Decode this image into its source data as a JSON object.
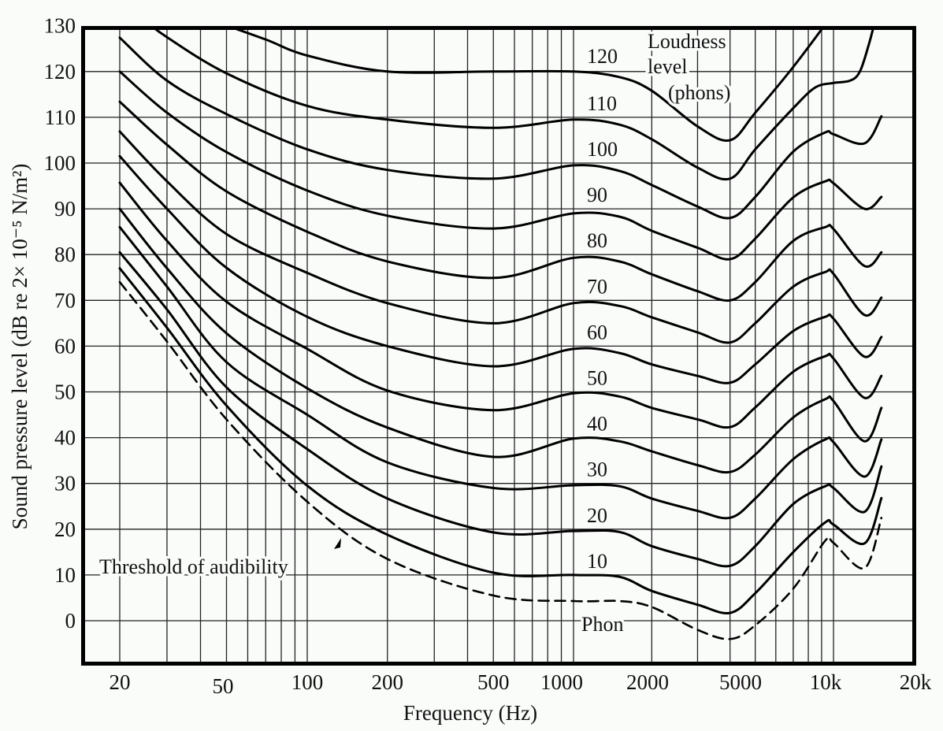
{
  "chart_data": {
    "type": "line",
    "title": "",
    "xlabel": "Frequency (Hz)",
    "ylabel": "Sound pressure level (dB re 2× 10⁻⁵ N/m²)",
    "x_scale": "log",
    "xlim": [
      20,
      20000
    ],
    "ylim": [
      -10,
      130
    ],
    "grid": true,
    "x_ticks": [
      {
        "value": 20,
        "label": "20"
      },
      {
        "value": 50,
        "label": "50"
      },
      {
        "value": 100,
        "label": "100"
      },
      {
        "value": 200,
        "label": "200"
      },
      {
        "value": 500,
        "label": "500"
      },
      {
        "value": 1000,
        "label": "1000"
      },
      {
        "value": 2000,
        "label": "2000"
      },
      {
        "value": 5000,
        "label": "5000"
      },
      {
        "value": 10000,
        "label": "10k"
      },
      {
        "value": 20000,
        "label": "20k"
      }
    ],
    "y_ticks": [
      {
        "value": 130,
        "label": "130"
      },
      {
        "value": 120,
        "label": "120"
      },
      {
        "value": 110,
        "label": "110"
      },
      {
        "value": 100,
        "label": "100"
      },
      {
        "value": 90,
        "label": "90"
      },
      {
        "value": 80,
        "label": "80"
      },
      {
        "value": 70,
        "label": "70"
      },
      {
        "value": 60,
        "label": "60"
      },
      {
        "value": 50,
        "label": "50"
      },
      {
        "value": 40,
        "label": "40"
      },
      {
        "value": 30,
        "label": "30"
      },
      {
        "value": 20,
        "label": "20"
      },
      {
        "value": 10,
        "label": "10"
      },
      {
        "value": 0,
        "label": "0"
      }
    ],
    "series": [
      {
        "name": "Threshold of audibility",
        "style": "dashed",
        "points": [
          [
            20,
            74
          ],
          [
            30,
            61
          ],
          [
            50,
            44
          ],
          [
            100,
            26
          ],
          [
            200,
            13.5
          ],
          [
            500,
            5.5
          ],
          [
            1000,
            4.3
          ],
          [
            1500,
            4.3
          ],
          [
            2000,
            3
          ],
          [
            3000,
            -2
          ],
          [
            4000,
            -4
          ],
          [
            5000,
            -1
          ],
          [
            7000,
            7
          ],
          [
            9300,
            17.5
          ],
          [
            10000,
            17
          ],
          [
            13000,
            11.5
          ],
          [
            15000,
            22.5
          ]
        ]
      },
      {
        "name": "10",
        "points": [
          [
            20,
            77
          ],
          [
            30,
            64
          ],
          [
            50,
            47
          ],
          [
            100,
            29.5
          ],
          [
            200,
            18.8
          ],
          [
            500,
            10.5
          ],
          [
            1000,
            10
          ],
          [
            1500,
            9.6
          ],
          [
            2000,
            6.5
          ],
          [
            3000,
            3.5
          ],
          [
            4000,
            1.7
          ],
          [
            5000,
            6
          ],
          [
            7000,
            15
          ],
          [
            9300,
            21.5
          ],
          [
            10000,
            21
          ],
          [
            13000,
            16.9
          ],
          [
            15000,
            26.8
          ]
        ]
      },
      {
        "name": "20",
        "points": [
          [
            20,
            80.5
          ],
          [
            30,
            68
          ],
          [
            50,
            51
          ],
          [
            100,
            37.5
          ],
          [
            200,
            26.7
          ],
          [
            500,
            19.3
          ],
          [
            1000,
            19.6
          ],
          [
            1500,
            19.4
          ],
          [
            2000,
            16.3
          ],
          [
            3000,
            13.5
          ],
          [
            4000,
            12
          ],
          [
            5000,
            16.3
          ],
          [
            7000,
            25.5
          ],
          [
            9300,
            29.4
          ],
          [
            10000,
            29
          ],
          [
            13000,
            23.8
          ],
          [
            15000,
            33.7
          ]
        ]
      },
      {
        "name": "30",
        "points": [
          [
            20,
            86
          ],
          [
            30,
            73
          ],
          [
            50,
            56.5
          ],
          [
            100,
            45
          ],
          [
            200,
            34.6
          ],
          [
            500,
            29
          ],
          [
            1000,
            29.6
          ],
          [
            1500,
            29.4
          ],
          [
            2000,
            26.7
          ],
          [
            3000,
            24
          ],
          [
            4000,
            22.5
          ],
          [
            5000,
            26.7
          ],
          [
            7000,
            35.3
          ],
          [
            9300,
            39.6
          ],
          [
            10000,
            39
          ],
          [
            13000,
            31.5
          ],
          [
            15000,
            39.6
          ]
        ]
      },
      {
        "name": "40",
        "points": [
          [
            20,
            90
          ],
          [
            30,
            77
          ],
          [
            50,
            62.8
          ],
          [
            100,
            50.8
          ],
          [
            200,
            42.2
          ],
          [
            500,
            35.8
          ],
          [
            1000,
            39.8
          ],
          [
            1500,
            39.2
          ],
          [
            2000,
            37
          ],
          [
            3000,
            34
          ],
          [
            4000,
            32.5
          ],
          [
            5000,
            36.3
          ],
          [
            7000,
            44.4
          ],
          [
            9300,
            48.4
          ],
          [
            10000,
            48
          ],
          [
            13000,
            39.2
          ],
          [
            15000,
            46.5
          ]
        ]
      },
      {
        "name": "50",
        "points": [
          [
            20,
            95.7
          ],
          [
            30,
            83
          ],
          [
            50,
            69.7
          ],
          [
            100,
            59.4
          ],
          [
            200,
            50.3
          ],
          [
            500,
            46
          ],
          [
            1000,
            49.7
          ],
          [
            1500,
            49
          ],
          [
            2000,
            46.5
          ],
          [
            3000,
            44
          ],
          [
            4000,
            42.3
          ],
          [
            5000,
            46.6
          ],
          [
            7000,
            54.4
          ],
          [
            9300,
            57.8
          ],
          [
            10000,
            57.3
          ],
          [
            13000,
            48.7
          ],
          [
            15000,
            53.5
          ]
        ]
      },
      {
        "name": "60",
        "points": [
          [
            20,
            101.5
          ],
          [
            30,
            90
          ],
          [
            50,
            77.1
          ],
          [
            100,
            66.4
          ],
          [
            200,
            60
          ],
          [
            500,
            55.6
          ],
          [
            1000,
            59.4
          ],
          [
            1500,
            58.5
          ],
          [
            2000,
            56
          ],
          [
            3000,
            53.5
          ],
          [
            4000,
            52
          ],
          [
            5000,
            56
          ],
          [
            7000,
            63.3
          ],
          [
            9300,
            66.4
          ],
          [
            10000,
            66
          ],
          [
            13000,
            57.7
          ],
          [
            15000,
            62
          ]
        ]
      },
      {
        "name": "70",
        "points": [
          [
            20,
            106.9
          ],
          [
            30,
            96
          ],
          [
            50,
            84.5
          ],
          [
            100,
            76
          ],
          [
            200,
            69.4
          ],
          [
            500,
            65
          ],
          [
            1000,
            69.4
          ],
          [
            1500,
            68.8
          ],
          [
            2000,
            66.3
          ],
          [
            3000,
            63
          ],
          [
            4000,
            60.8
          ],
          [
            5000,
            65
          ],
          [
            7000,
            73
          ],
          [
            9300,
            76.2
          ],
          [
            10000,
            75.8
          ],
          [
            13000,
            66.8
          ],
          [
            15000,
            70.6
          ]
        ]
      },
      {
        "name": "80",
        "points": [
          [
            20,
            113.4
          ],
          [
            30,
            104
          ],
          [
            50,
            93.8
          ],
          [
            100,
            85
          ],
          [
            200,
            78.5
          ],
          [
            500,
            74.9
          ],
          [
            1000,
            79.3
          ],
          [
            1500,
            78.5
          ],
          [
            2000,
            75.7
          ],
          [
            3000,
            72
          ],
          [
            4000,
            70
          ],
          [
            5000,
            74
          ],
          [
            7000,
            83
          ],
          [
            9300,
            86
          ],
          [
            10000,
            85.6
          ],
          [
            13000,
            77.5
          ],
          [
            15000,
            80.5
          ]
        ]
      },
      {
        "name": "90",
        "points": [
          [
            20,
            120
          ],
          [
            30,
            111
          ],
          [
            50,
            102.4
          ],
          [
            100,
            94
          ],
          [
            200,
            88.5
          ],
          [
            500,
            85.7
          ],
          [
            1000,
            89
          ],
          [
            1500,
            88.3
          ],
          [
            2000,
            85.2
          ],
          [
            3000,
            81.5
          ],
          [
            4000,
            79
          ],
          [
            5000,
            83.5
          ],
          [
            7000,
            92.5
          ],
          [
            9300,
            96
          ],
          [
            10000,
            95.6
          ],
          [
            13000,
            90
          ],
          [
            15000,
            92.6
          ]
        ]
      },
      {
        "name": "100",
        "points": [
          [
            20,
            127.4
          ],
          [
            30,
            118
          ],
          [
            50,
            110.7
          ],
          [
            100,
            103
          ],
          [
            200,
            98.5
          ],
          [
            500,
            96.6
          ],
          [
            1000,
            99.5
          ],
          [
            1500,
            98.3
          ],
          [
            2000,
            95.2
          ],
          [
            3000,
            90.5
          ],
          [
            4000,
            88
          ],
          [
            5000,
            92.6
          ],
          [
            7000,
            102.5
          ],
          [
            9300,
            106.7
          ],
          [
            10000,
            106.3
          ],
          [
            13000,
            104.3
          ],
          [
            15000,
            110.2
          ]
        ]
      },
      {
        "name": "110",
        "points": [
          [
            25,
            131
          ],
          [
            30,
            127.5
          ],
          [
            50,
            119.6
          ],
          [
            100,
            112.5
          ],
          [
            200,
            109.5
          ],
          [
            500,
            107.7
          ],
          [
            1000,
            109.5
          ],
          [
            1500,
            108.4
          ],
          [
            2000,
            105.2
          ],
          [
            3000,
            99
          ],
          [
            4000,
            96.6
          ],
          [
            5000,
            103
          ],
          [
            7000,
            112
          ],
          [
            8500,
            116.5
          ],
          [
            10000,
            117.5
          ],
          [
            11500,
            118
          ],
          [
            12500,
            120
          ],
          [
            13500,
            126
          ],
          [
            14200,
            131
          ]
        ]
      },
      {
        "name": "120",
        "points": [
          [
            45,
            131
          ],
          [
            70,
            127
          ],
          [
            100,
            123.5
          ],
          [
            200,
            120
          ],
          [
            500,
            120
          ],
          [
            1000,
            120
          ],
          [
            1500,
            118.8
          ],
          [
            2000,
            115.8
          ],
          [
            3000,
            108
          ],
          [
            4000,
            105
          ],
          [
            5000,
            111
          ],
          [
            7000,
            121
          ],
          [
            9500,
            131
          ]
        ]
      }
    ],
    "annotations": {
      "phon_labels": [
        "120",
        "110",
        "100",
        "90",
        "80",
        "70",
        "60",
        "50",
        "40",
        "30",
        "20",
        "10"
      ],
      "legend_title_line1": "Loudness",
      "legend_title_line2": "level",
      "legend_title_line3": "(phons)",
      "zero_label": "Phon",
      "threshold_label": "Threshold of audibility"
    }
  }
}
